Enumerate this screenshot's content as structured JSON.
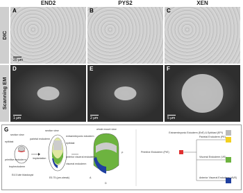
{
  "columns": [
    "END2",
    "PYS2",
    "XEN"
  ],
  "rows": [
    {
      "label": "DIC",
      "panels": [
        {
          "letter": "A",
          "scale": "20 μm"
        },
        {
          "letter": "B"
        },
        {
          "letter": "C"
        }
      ]
    },
    {
      "label": "Scanning EM",
      "panels": [
        {
          "letter": "D",
          "scale": "1 μm"
        },
        {
          "letter": "E",
          "scale": "2 μm"
        },
        {
          "letter": "F",
          "scale": "5 μm"
        }
      ]
    }
  ],
  "panel_g": {
    "letter": "G",
    "diagram_labels": [
      "section view",
      "epiblast",
      "primitive endoderm",
      "parietal endoderm",
      "trophectoderm",
      "implantation",
      "E4.5 late blastocyst",
      "section view",
      "extraembryonic ectoderm",
      "epiblast",
      "anterior visceral endoderm",
      "visceral endoderm",
      "E5.75 (pre-streak)",
      "whole mount view",
      "A",
      "P",
      "D"
    ],
    "legend": {
      "top": "Extraembryonic Ectoderm (ExE) & Epiblast (EPI)",
      "root": "Primitive Endoderm (PrE)",
      "children": [
        "Parietal Endoderm (PE)",
        "Visceral Endoderm (VE)",
        "Anterior Visceral Endoderm (AVE)"
      ]
    }
  }
}
